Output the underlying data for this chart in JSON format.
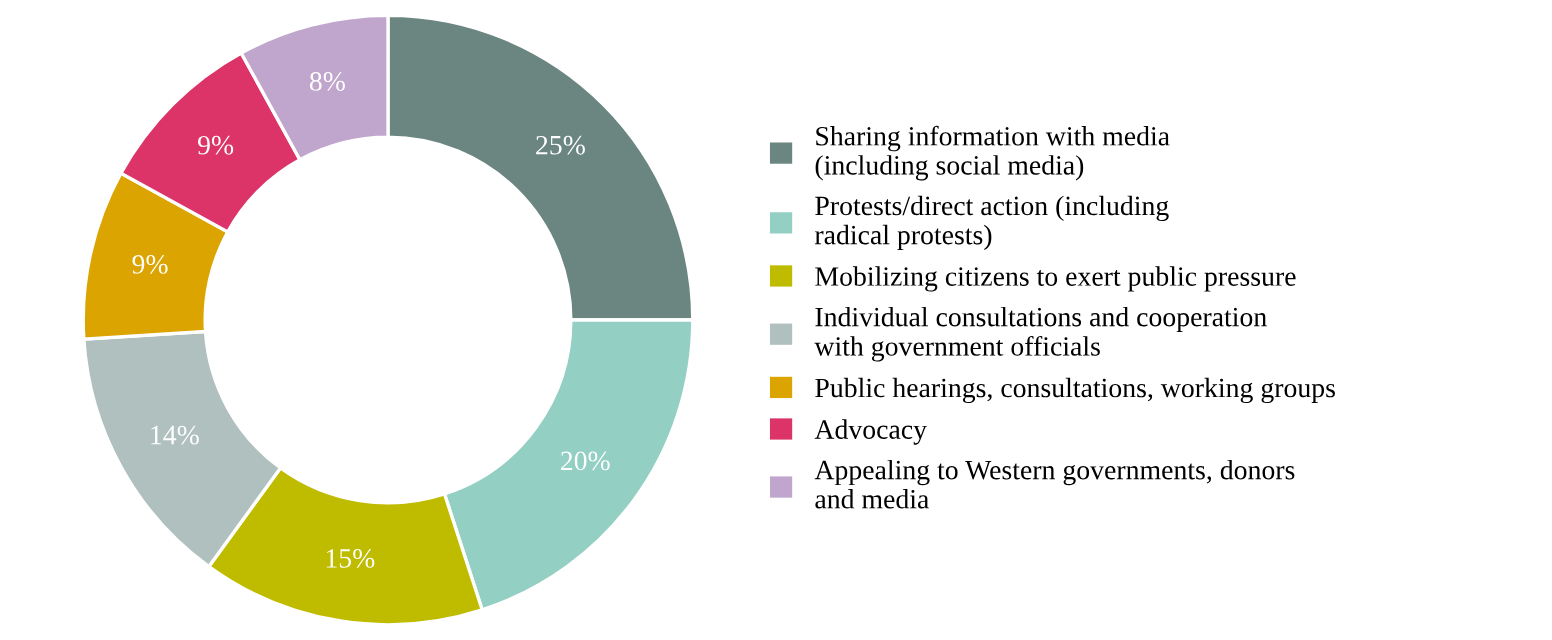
{
  "chart_data": {
    "type": "donut",
    "categories": [
      "Sharing information with media\n(including social media)",
      "Protests/direct action (including\nradical protests)",
      "Mobilizing citizens to exert public pressure",
      "Individual consultations and cooperation\nwith government officials",
      "Public hearings, consultations, working groups",
      "Advocacy",
      "Appealing to Western governments, donors\nand media"
    ],
    "values": [
      25,
      20,
      15,
      14,
      9,
      9,
      8
    ],
    "value_labels": [
      "25%",
      "20%",
      "15%",
      "14%",
      "9%",
      "9%",
      "8%"
    ],
    "colors": [
      "#6b8580",
      "#93cfc3",
      "#bfbc00",
      "#b0c0be",
      "#dca400",
      "#dc3468",
      "#c0a6cc"
    ],
    "legend": "right"
  }
}
